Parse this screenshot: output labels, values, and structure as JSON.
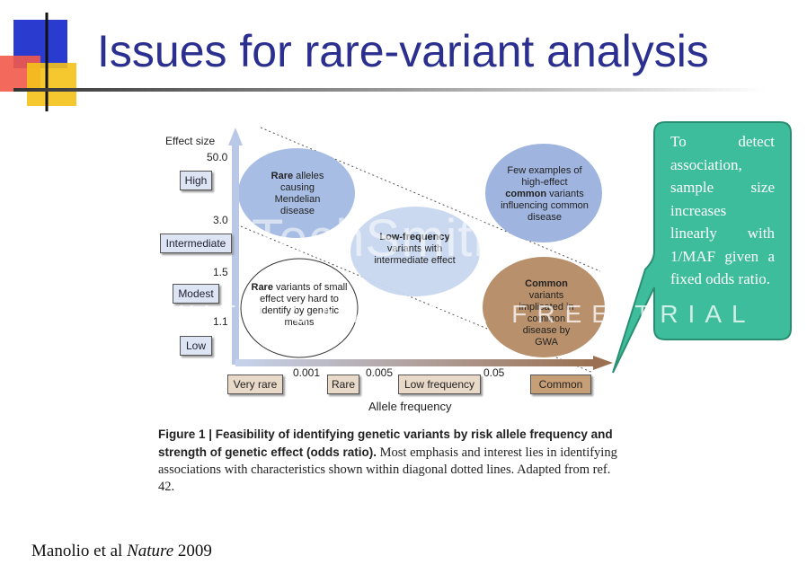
{
  "title": "Issues for rare-variant analysis",
  "figure": {
    "y_axis_label": "Effect size",
    "y_values": [
      "50.0",
      "3.0",
      "1.5",
      "1.1"
    ],
    "y_categories": [
      "High",
      "Intermediate",
      "Modest",
      "Low"
    ],
    "x_axis_label": "Allele frequency",
    "x_values": [
      "0.001",
      "0.005",
      "0.05"
    ],
    "x_categories": [
      "Very rare",
      "Rare",
      "Low frequency",
      "Common"
    ],
    "regions": [
      {
        "bold": "Rare",
        "text": " alleles causing Mendelian disease"
      },
      {
        "bold": "common",
        "before": "Few examples of high-effect ",
        "text": " variants influencing common disease"
      },
      {
        "bold": "Low-frequency",
        "text": " variants with intermediate effect"
      },
      {
        "bold": "Rare",
        "text": " variants of small effect very hard to identify by genetic means"
      },
      {
        "bold": "Common",
        "text": " variants implicated in common disease by GWA"
      }
    ],
    "caption": {
      "bold": "Figure 1 | Feasibility of identifying genetic variants by risk allele frequency and strength of genetic effect (odds ratio).",
      "text": " Most emphasis and interest lies in identifying associations with characteristics shown within diagonal dotted lines. Adapted from ref. 42."
    }
  },
  "callout": "To detect association, sample size increases linearly with 1/MAF given a fixed odds ratio.",
  "citation": {
    "authors": "Manolio et al ",
    "journal": "Nature",
    "year": " 2009"
  },
  "watermark": {
    "logo": "TechSmith",
    "banner": "MADE WITH CAMTASIA FREE TRIAL"
  }
}
